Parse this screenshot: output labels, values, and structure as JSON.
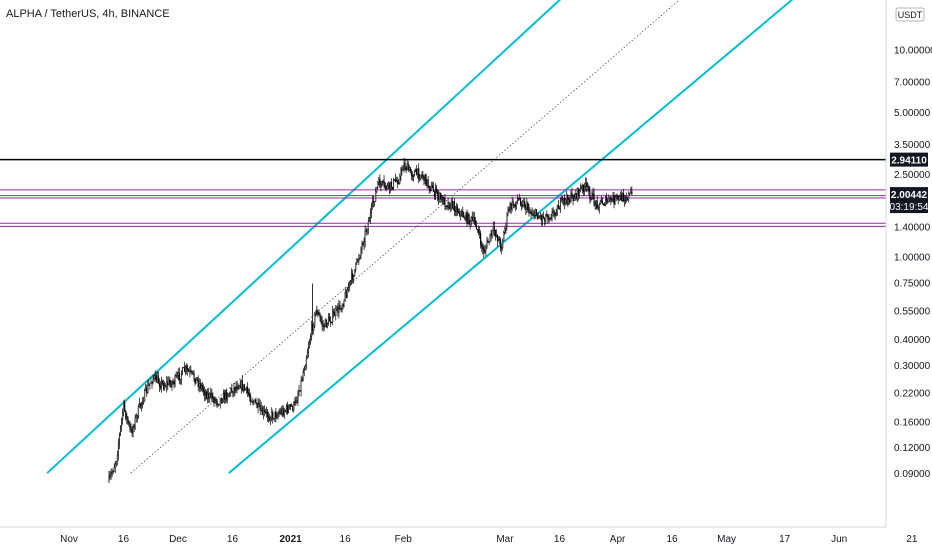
{
  "chart_data": {
    "type": "candlestick",
    "title": "ALPHA / TetherUS, 4h, BINANCE",
    "currency": "USDT",
    "y_scale": "log",
    "y_ticks": [
      "10.00000",
      "7.00000",
      "5.00000",
      "3.50000",
      "2.50000",
      "1.40000",
      "1.00000",
      "0.75000",
      "0.55000",
      "0.40000",
      "0.30000",
      "0.22000",
      "0.16000",
      "0.12000",
      "0.09000"
    ],
    "y_tick_values": [
      10,
      7,
      5,
      3.5,
      2.5,
      1.4,
      1.0,
      0.75,
      0.55,
      0.4,
      0.3,
      0.22,
      0.16,
      0.12,
      0.09
    ],
    "x_ticks": [
      {
        "label": "Nov",
        "date": "2020-11-01"
      },
      {
        "label": "16",
        "date": "2020-11-16"
      },
      {
        "label": "Dec",
        "date": "2020-12-01"
      },
      {
        "label": "16",
        "date": "2020-12-16"
      },
      {
        "label": "2021",
        "date": "2021-01-01",
        "bold": true
      },
      {
        "label": "16",
        "date": "2021-01-16"
      },
      {
        "label": "Feb",
        "date": "2021-02-01"
      },
      {
        "label": "Mar",
        "date": "2021-03-01"
      },
      {
        "label": "16",
        "date": "2021-03-16"
      },
      {
        "label": "Apr",
        "date": "2021-04-01"
      },
      {
        "label": "16",
        "date": "2021-04-16"
      },
      {
        "label": "May",
        "date": "2021-05-01"
      },
      {
        "label": "17",
        "date": "2021-05-17"
      },
      {
        "label": "Jun",
        "date": "2021-06-01"
      },
      {
        "label": "21",
        "date": "2021-06-21"
      }
    ],
    "price_path": [
      [
        "2020-11-12",
        0.082
      ],
      [
        "2020-11-14",
        0.105
      ],
      [
        "2020-11-16",
        0.19
      ],
      [
        "2020-11-18",
        0.14
      ],
      [
        "2020-11-21",
        0.2
      ],
      [
        "2020-11-24",
        0.26
      ],
      [
        "2020-11-27",
        0.24
      ],
      [
        "2020-11-30",
        0.25
      ],
      [
        "2020-12-03",
        0.285
      ],
      [
        "2020-12-06",
        0.255
      ],
      [
        "2020-12-09",
        0.215
      ],
      [
        "2020-12-12",
        0.2
      ],
      [
        "2020-12-15",
        0.22
      ],
      [
        "2020-12-18",
        0.245
      ],
      [
        "2020-12-21",
        0.21
      ],
      [
        "2020-12-24",
        0.175
      ],
      [
        "2020-12-27",
        0.17
      ],
      [
        "2020-12-30",
        0.18
      ],
      [
        "2021-01-02",
        0.19
      ],
      [
        "2021-01-04",
        0.25
      ],
      [
        "2021-01-06",
        0.38
      ],
      [
        "2021-01-08",
        0.55
      ],
      [
        "2021-01-10",
        0.46
      ],
      [
        "2021-01-12",
        0.5
      ],
      [
        "2021-01-15",
        0.58
      ],
      [
        "2021-01-17",
        0.72
      ],
      [
        "2021-01-19",
        0.9
      ],
      [
        "2021-01-21",
        1.2
      ],
      [
        "2021-01-23",
        1.6
      ],
      [
        "2021-01-25",
        2.25
      ],
      [
        "2021-01-28",
        2.15
      ],
      [
        "2021-01-31",
        2.4
      ],
      [
        "2021-02-01",
        2.8
      ],
      [
        "2021-02-03",
        2.55
      ],
      [
        "2021-02-06",
        2.5
      ],
      [
        "2021-02-09",
        2.1
      ],
      [
        "2021-02-12",
        1.85
      ],
      [
        "2021-02-15",
        1.75
      ],
      [
        "2021-02-18",
        1.55
      ],
      [
        "2021-02-21",
        1.45
      ],
      [
        "2021-02-23",
        1.05
      ],
      [
        "2021-02-26",
        1.35
      ],
      [
        "2021-02-28",
        1.12
      ],
      [
        "2021-03-02",
        1.7
      ],
      [
        "2021-03-05",
        1.9
      ],
      [
        "2021-03-08",
        1.65
      ],
      [
        "2021-03-11",
        1.55
      ],
      [
        "2021-03-14",
        1.6
      ],
      [
        "2021-03-17",
        1.85
      ],
      [
        "2021-03-20",
        1.95
      ],
      [
        "2021-03-23",
        2.2
      ],
      [
        "2021-03-26",
        1.8
      ],
      [
        "2021-03-29",
        1.85
      ],
      [
        "2021-04-01",
        1.9
      ],
      [
        "2021-04-03",
        1.95
      ],
      [
        "2021-04-05",
        2.0
      ]
    ],
    "spikes": [
      [
        "2021-01-07",
        0.74
      ]
    ],
    "horizontal_lines": [
      {
        "price": 2.9411,
        "color": "#000000",
        "label": "2.94110"
      },
      {
        "price": 2.1,
        "color": "#9c27b0"
      },
      {
        "price": 1.97,
        "color": "#9c27b0"
      },
      {
        "price": 1.92,
        "color": "#9c27b0"
      },
      {
        "price": 1.45,
        "color": "#9c27b0"
      },
      {
        "price": 1.4,
        "color": "#9c27b0"
      }
    ],
    "channel": {
      "color": "#00bcd4",
      "upper": [
        [
          "2020-10-26",
          0.09
        ],
        [
          "2021-03-17",
          18.0
        ]
      ],
      "lower": [
        [
          "2020-12-15",
          0.09
        ],
        [
          "2021-05-20",
          18.0
        ]
      ],
      "median": [
        [
          "2020-11-18",
          0.09
        ],
        [
          "2021-04-19",
          18.0
        ]
      ]
    },
    "current_price": {
      "value": 2.00442,
      "label": "2.00442",
      "countdown": "03:19:54"
    },
    "colors": {
      "candle": "#000000",
      "channel": "#00bcd4",
      "support": "#9c27b0",
      "resistance": "#000000",
      "text": "#131722"
    }
  }
}
